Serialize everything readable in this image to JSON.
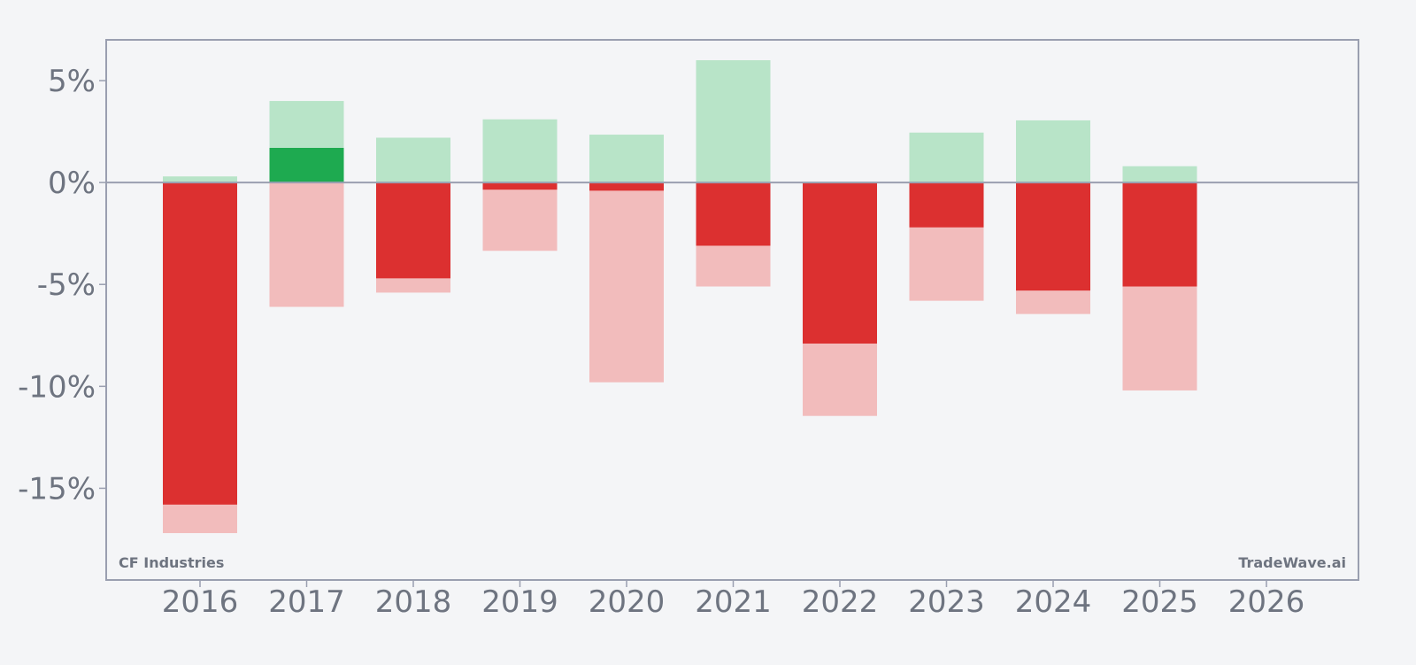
{
  "company_label": "CF Industries",
  "brand_label": "TradeWave.ai",
  "colors": {
    "background": "#f4f5f7",
    "frame": "#9a9fb0",
    "tick_text": "#6e7480",
    "close_up": "#1eaa50",
    "close_down": "#dc3030",
    "range_up": "#b8e4c8",
    "range_down": "#f2bcbc"
  },
  "chart_data": {
    "type": "bar",
    "title": "",
    "xlabel": "",
    "ylabel": "",
    "grid": false,
    "ylim": [
      -19.5,
      7
    ],
    "y_ticks": [
      {
        "value": 5,
        "label": "5%"
      },
      {
        "value": 0,
        "label": "0%"
      },
      {
        "value": -5,
        "label": "-5%"
      },
      {
        "value": -10,
        "label": "-10%"
      },
      {
        "value": -15,
        "label": "-15%"
      }
    ],
    "categories": [
      "2016",
      "2017",
      "2018",
      "2019",
      "2020",
      "2021",
      "2022",
      "2023",
      "2024",
      "2025",
      "2026"
    ],
    "series": [
      {
        "values": [
          -15.8,
          1.7,
          -4.7,
          -0.35,
          -0.4,
          -3.1,
          -7.9,
          -2.2,
          -5.3,
          -5.1,
          null
        ]
      },
      {
        "values": [
          0.3,
          4.0,
          2.2,
          3.1,
          2.35,
          6.0,
          0.0,
          2.45,
          3.05,
          0.8,
          null
        ]
      },
      {
        "values": [
          -17.2,
          -6.1,
          -5.4,
          -3.35,
          -9.8,
          -5.1,
          -11.45,
          -5.8,
          -6.45,
          -10.2,
          null
        ]
      }
    ]
  }
}
